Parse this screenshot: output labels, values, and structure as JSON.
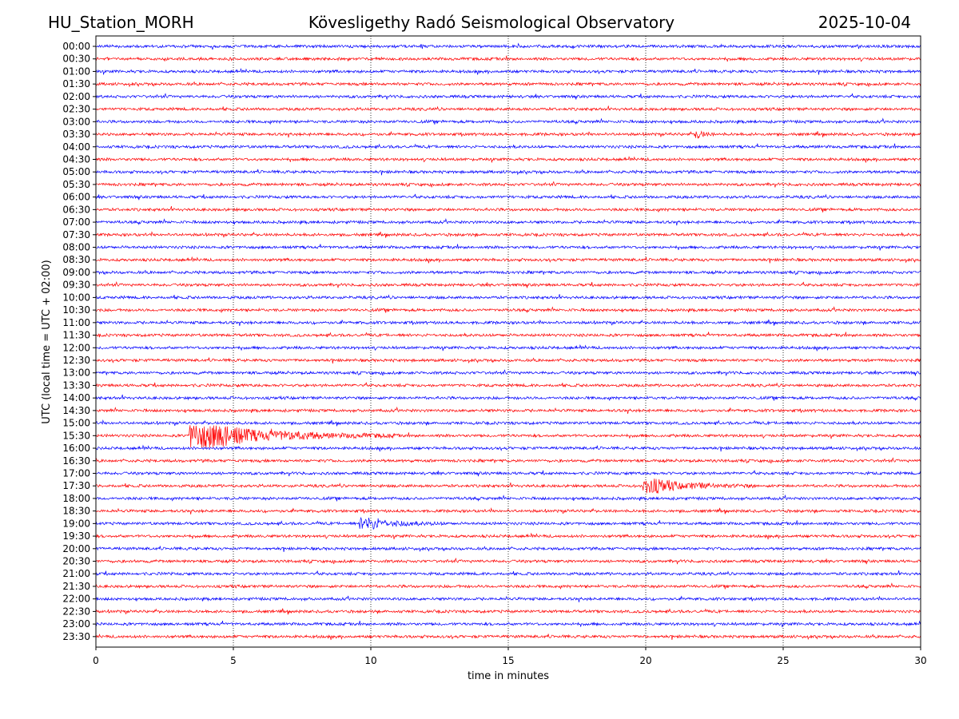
{
  "header": {
    "station": "HU_Station_MORH",
    "observatory": "Kövesligethy Radó Seismological Observatory",
    "date": "2025-10-04"
  },
  "chart_data": {
    "type": "line",
    "title": "Kövesligethy Radó Seismological Observatory",
    "xlabel": "time in minutes",
    "ylabel": "UTC (local time = UTC + 02:00)",
    "xlim": [
      0,
      30
    ],
    "x_ticks": [
      "0",
      "5",
      "10",
      "15",
      "20",
      "25",
      "30"
    ],
    "grid": "vertical dotted lines at x ticks",
    "trace_colors": [
      "#0000ff",
      "#ff0000"
    ],
    "traces": [
      "00:00",
      "00:30",
      "01:00",
      "01:30",
      "02:00",
      "02:30",
      "03:00",
      "03:30",
      "04:00",
      "04:30",
      "05:00",
      "05:30",
      "06:00",
      "06:30",
      "07:00",
      "07:30",
      "08:00",
      "08:30",
      "09:00",
      "09:30",
      "10:00",
      "10:30",
      "11:00",
      "11:30",
      "12:00",
      "12:30",
      "13:00",
      "13:30",
      "14:00",
      "14:30",
      "15:00",
      "15:30",
      "16:00",
      "16:30",
      "17:00",
      "17:30",
      "18:00",
      "18:30",
      "19:00",
      "19:30",
      "20:00",
      "20:30",
      "21:00",
      "21:30",
      "22:00",
      "22:30",
      "23:00",
      "23:30"
    ],
    "events": [
      {
        "trace": "03:30",
        "start_min": 21.8,
        "end_min": 22.5,
        "amplitude": 0.4
      },
      {
        "trace": "15:30",
        "start_min": 3.4,
        "end_min": 11.0,
        "amplitude": 1.0
      },
      {
        "trace": "17:30",
        "start_min": 19.9,
        "end_min": 24.0,
        "amplitude": 0.55
      },
      {
        "trace": "19:00",
        "start_min": 9.6,
        "end_min": 12.8,
        "amplitude": 0.45
      }
    ]
  }
}
